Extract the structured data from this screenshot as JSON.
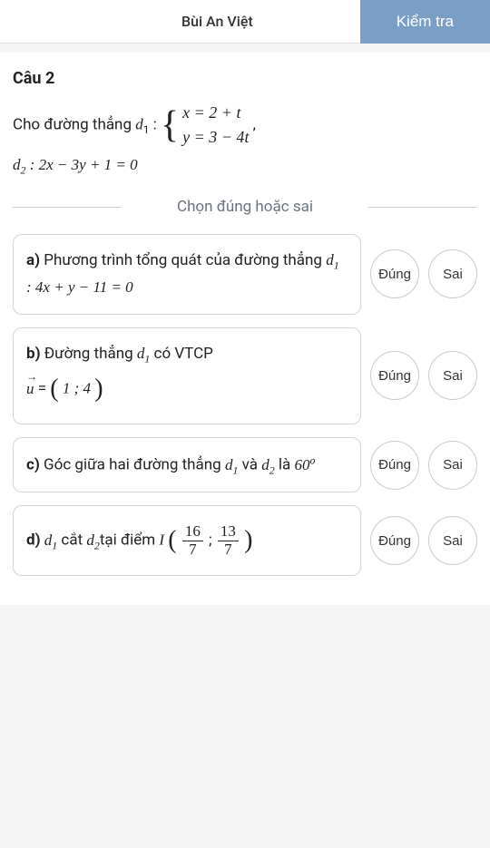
{
  "header": {
    "student_name": "Bùi An Việt",
    "check_label": "Kiểm tra"
  },
  "question": {
    "number": "Câu 2",
    "prompt_prefix": "Cho đường thẳng ",
    "d1_label": "d",
    "d1_sub": "1",
    "eq1_line1": "x = 2 + t",
    "eq1_line2": "y = 3 − 4t",
    "comma": " ,",
    "d2_text": "d₂ : 2x − 3y + 1 = 0"
  },
  "instruction": "Chọn đúng hoặc sai",
  "options": [
    {
      "letter": "a)",
      "text_pre": " Phương trình tổng quát của đường thẳng ",
      "math": "d₁ : 4x + y − 11 = 0"
    },
    {
      "letter": "b)",
      "text_pre": " Đường thẳng ",
      "d_math": "d₁",
      "text_mid": " có VTCP",
      "vec": "u",
      "vec_val": "( 1 ; 4 )"
    },
    {
      "letter": "c)",
      "text_pre": " Góc giữa hai đường thẳng ",
      "d1": "d₁",
      "and": " và ",
      "d2": "d₂",
      "text_post": " là ",
      "angle": "60",
      "deg": "o"
    },
    {
      "letter": "d)",
      "d1": "d₁",
      "cut": " cắt ",
      "d2": "d₂",
      "at": "tại điểm ",
      "point": "I",
      "frac1_num": "16",
      "frac1_den": "7",
      "frac2_num": "13",
      "frac2_den": "7"
    }
  ],
  "buttons": {
    "true": "Đúng",
    "false": "Sai"
  },
  "colors": {
    "check_bg": "#7b9ec7",
    "border": "#d0d5dd",
    "text": "#222222",
    "muted": "#6b7280"
  }
}
